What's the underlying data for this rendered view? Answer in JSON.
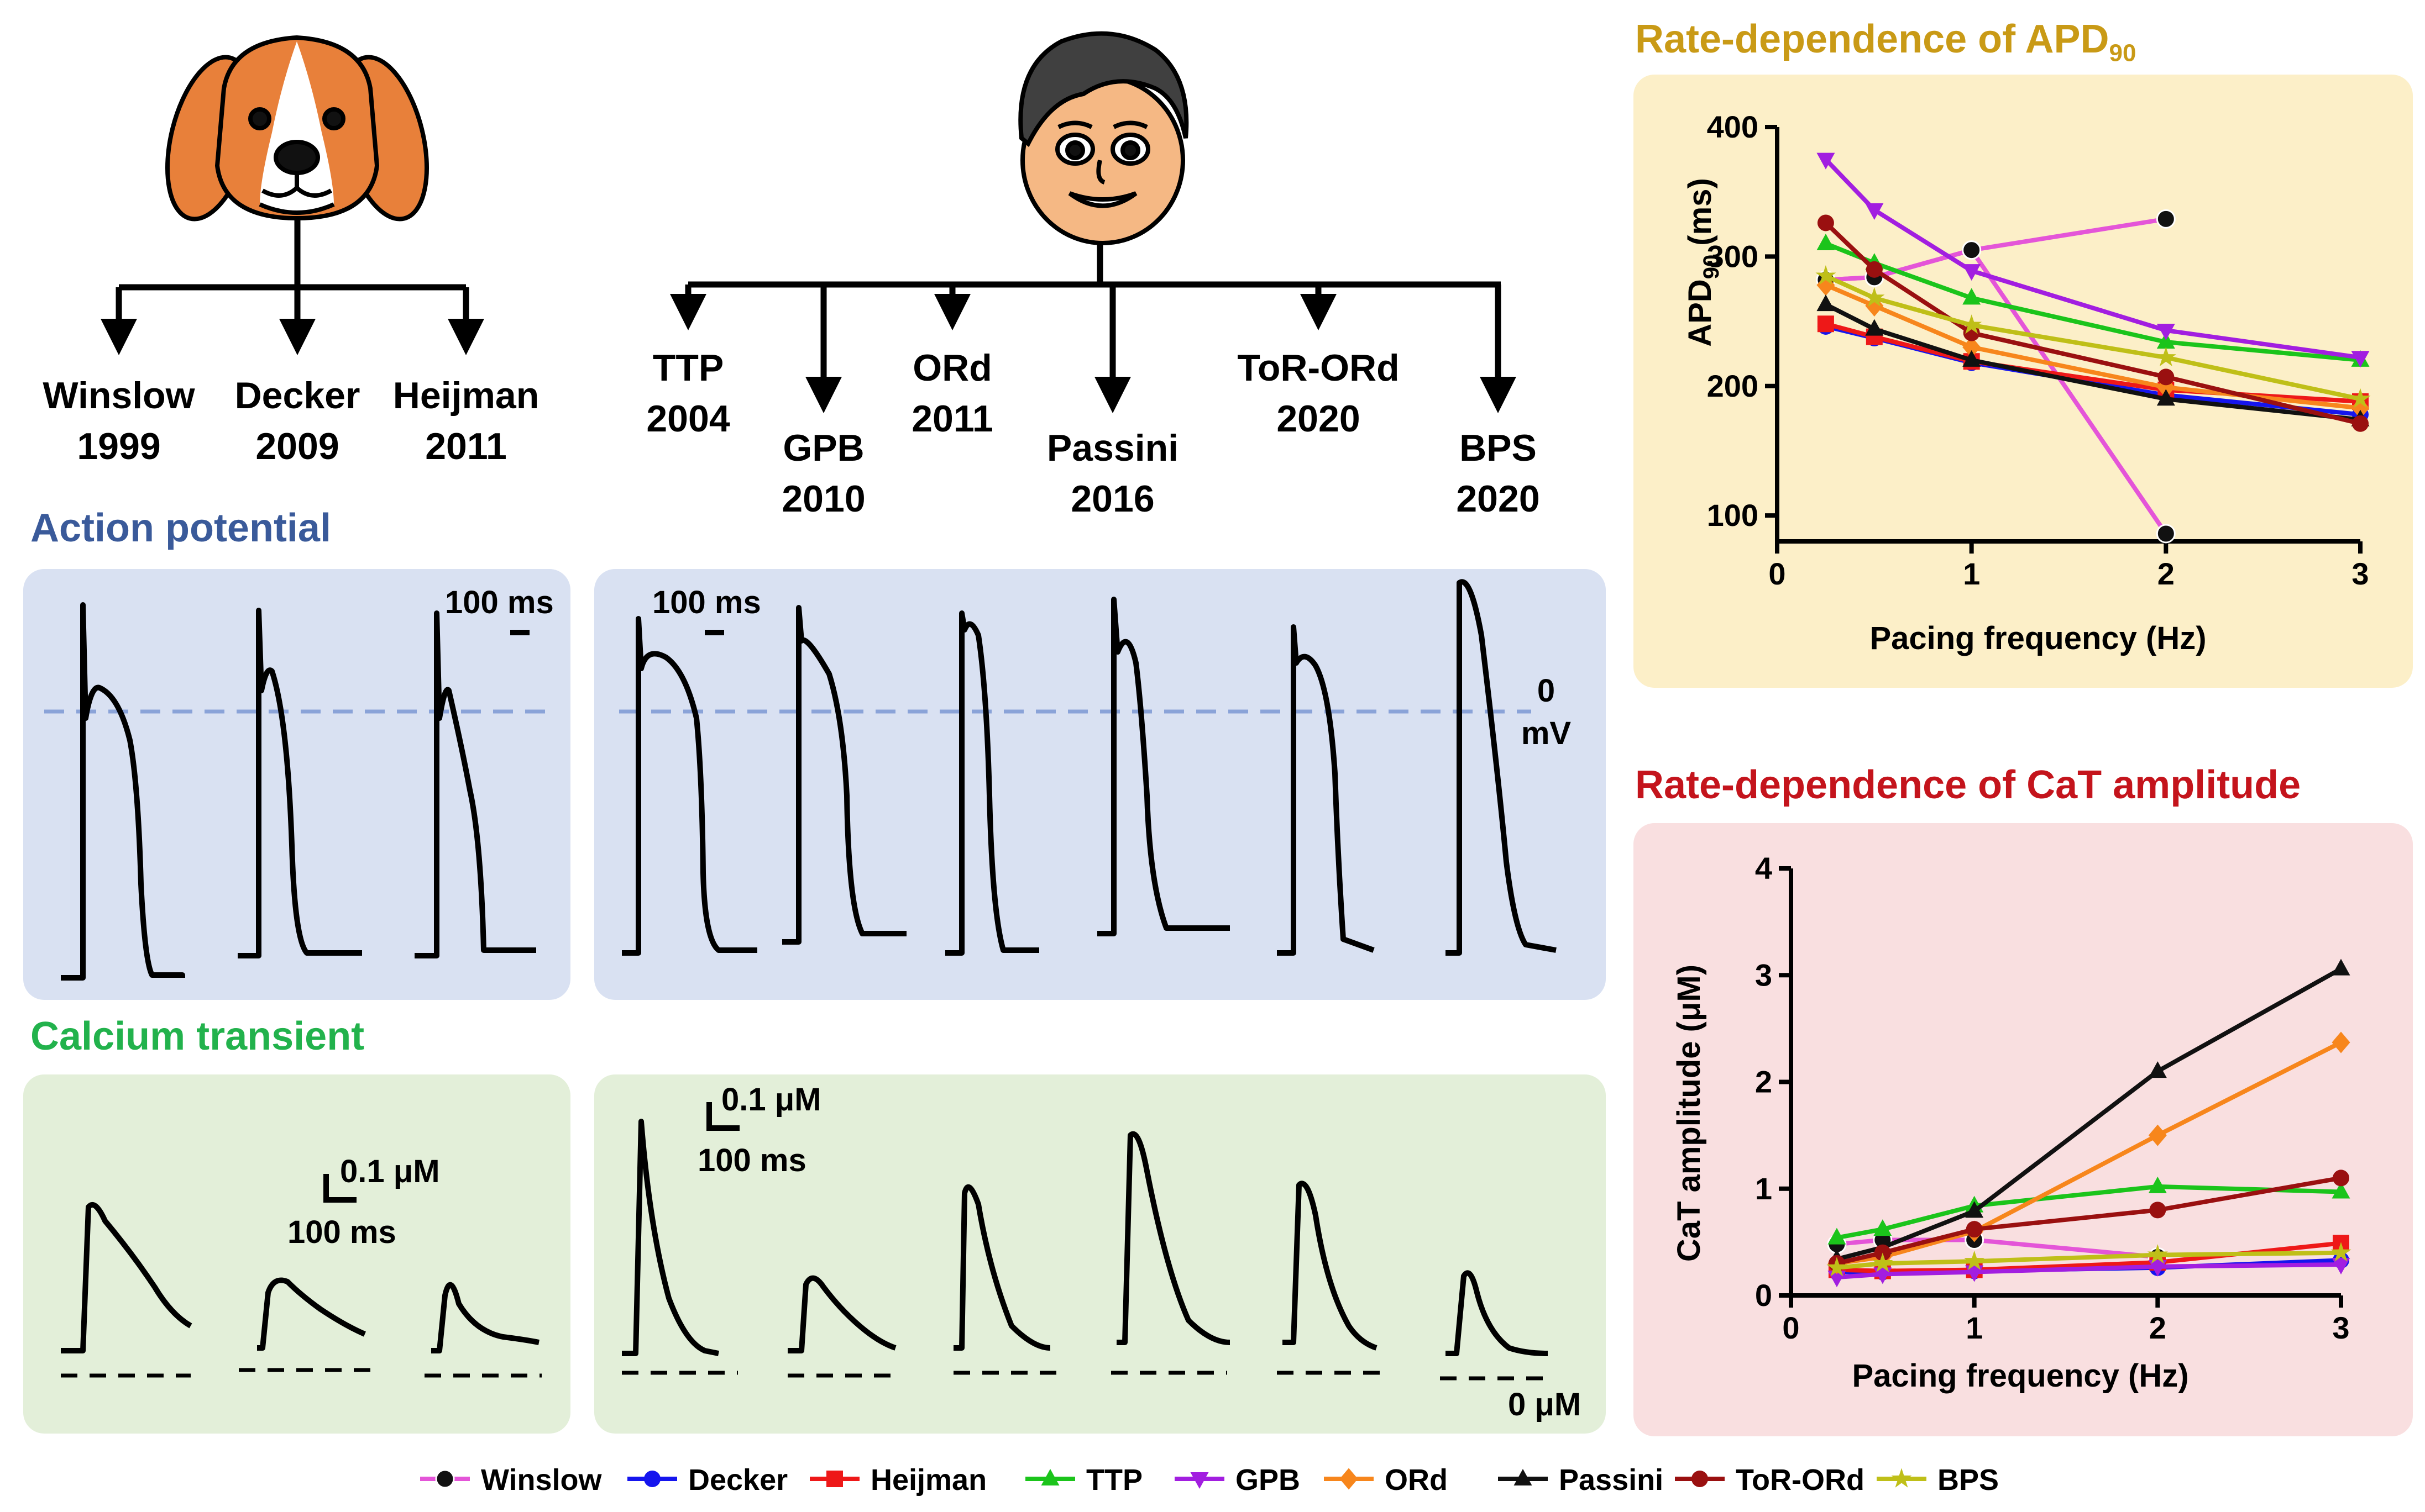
{
  "colors": {
    "Winslow": "#e455d8",
    "Decker": "#1515ee",
    "Heijman": "#ee1818",
    "TTP": "#1bc41b",
    "GPB": "#a21ee0",
    "ORd": "#f7861c",
    "Passini": "#111111",
    "ToR-ORd": "#9a1010",
    "BPS": "#bfbf18",
    "ap_panel": "#d9e1f2",
    "ca_panel": "#e3efd9",
    "apd_panel": "#fcefc8",
    "cat_panel": "#f9dfe0",
    "ap_heading": "#3a5a9a",
    "ca_heading": "#22b24c",
    "apd_heading": "#c99a16",
    "cat_heading": "#c4141c"
  },
  "species": {
    "dog": "dog-face-icon",
    "human": "human-face-icon"
  },
  "dog_models": [
    {
      "name": "Winslow",
      "year": "1999"
    },
    {
      "name": "Decker",
      "year": "2009"
    },
    {
      "name": "Heijman",
      "year": "2011"
    }
  ],
  "human_models": [
    {
      "name": "TTP",
      "year": "2004"
    },
    {
      "name": "GPB",
      "year": "2010"
    },
    {
      "name": "ORd",
      "year": "2011"
    },
    {
      "name": "Passini",
      "year": "2016"
    },
    {
      "name": "ToR-ORd",
      "year": "2020"
    },
    {
      "name": "BPS",
      "year": "2020"
    }
  ],
  "sections": {
    "action_potential": "Action potential",
    "calcium_transient": "Calcium transient"
  },
  "scale_bars": {
    "ap_time_dog": "100 ms",
    "ap_time_human": "100 ms",
    "ap_zero_value": "0",
    "ap_zero_unit": "mV",
    "ca_conc_dog": "0.1 μM",
    "ca_time_dog": "100 ms",
    "ca_conc_human": "0.1 μM",
    "ca_time_human": "100 ms",
    "ca_zero": "0 μM"
  },
  "chart_data": [
    {
      "type": "line",
      "title_prefix": "Rate-dependence of APD",
      "title_sub": "90",
      "xlabel": "Pacing frequency (Hz)",
      "ylabel_prefix": "APD",
      "ylabel_sub": "90",
      "ylabel_suffix": " (ms)",
      "xlim": [
        0,
        3
      ],
      "ylim": [
        80,
        400
      ],
      "xticks": [
        0,
        1,
        2,
        3
      ],
      "yticks": [
        100,
        200,
        300,
        400
      ],
      "series": [
        {
          "name": "Winslow",
          "x": [
            0.25,
            0.5,
            1,
            2
          ],
          "values": [
            282,
            284,
            305,
            329
          ]
        },
        {
          "name": "Winslow",
          "x": [
            0.25,
            0.5,
            1,
            2
          ],
          "values": [
            282,
            284,
            305,
            86
          ]
        },
        {
          "name": "Decker",
          "x": [
            0.25,
            0.5,
            1,
            2,
            3
          ],
          "values": [
            246,
            237,
            218,
            193,
            178
          ]
        },
        {
          "name": "Heijman",
          "x": [
            0.25,
            0.5,
            1,
            2,
            3
          ],
          "values": [
            248,
            238,
            219,
            197,
            188
          ]
        },
        {
          "name": "TTP",
          "x": [
            0.25,
            0.5,
            1,
            2,
            3
          ],
          "values": [
            310,
            295,
            268,
            234,
            220
          ]
        },
        {
          "name": "GPB",
          "x": [
            0.25,
            0.5,
            1,
            2,
            3
          ],
          "values": [
            375,
            336,
            289,
            243,
            222
          ]
        },
        {
          "name": "ORd",
          "x": [
            0.25,
            0.5,
            1,
            2,
            3
          ],
          "values": [
            278,
            262,
            230,
            199,
            183
          ]
        },
        {
          "name": "Passini",
          "x": [
            0.25,
            0.5,
            1,
            2,
            3
          ],
          "values": [
            263,
            244,
            220,
            190,
            174
          ]
        },
        {
          "name": "ToR-ORd",
          "x": [
            0.25,
            0.5,
            1,
            2,
            3
          ],
          "values": [
            326,
            290,
            241,
            207,
            171
          ]
        },
        {
          "name": "BPS",
          "x": [
            0.25,
            0.5,
            1,
            2,
            3
          ],
          "values": [
            285,
            268,
            247,
            222,
            190
          ]
        }
      ]
    },
    {
      "type": "line",
      "title": "Rate-dependence of CaT amplitude",
      "xlabel": "Pacing frequency (Hz)",
      "ylabel": "CaT amplitude (μM)",
      "xlim": [
        0,
        3
      ],
      "ylim": [
        0,
        4
      ],
      "xticks": [
        0,
        1,
        2,
        3
      ],
      "yticks": [
        0,
        1,
        2,
        3,
        4
      ],
      "series": [
        {
          "name": "Winslow",
          "x": [
            0.25,
            0.5,
            1,
            2
          ],
          "values": [
            0.48,
            0.52,
            0.52,
            0.36
          ]
        },
        {
          "name": "Decker",
          "x": [
            0.25,
            0.5,
            1,
            2,
            3
          ],
          "values": [
            0.22,
            0.22,
            0.23,
            0.26,
            0.33
          ]
        },
        {
          "name": "Heijman",
          "x": [
            0.25,
            0.5,
            1,
            2,
            3
          ],
          "values": [
            0.24,
            0.23,
            0.24,
            0.31,
            0.49
          ]
        },
        {
          "name": "TTP",
          "x": [
            0.25,
            0.5,
            1,
            2,
            3
          ],
          "values": [
            0.54,
            0.62,
            0.84,
            1.02,
            0.97
          ]
        },
        {
          "name": "GPB",
          "x": [
            0.25,
            0.5,
            1,
            2,
            3
          ],
          "values": [
            0.17,
            0.2,
            0.22,
            0.27,
            0.29
          ]
        },
        {
          "name": "ORd",
          "x": [
            0.25,
            0.5,
            1,
            2,
            3
          ],
          "values": [
            0.3,
            0.36,
            0.6,
            1.5,
            2.37
          ]
        },
        {
          "name": "Passini",
          "x": [
            0.25,
            0.5,
            1,
            2,
            3
          ],
          "values": [
            0.34,
            0.45,
            0.79,
            2.1,
            3.06
          ]
        },
        {
          "name": "ToR-ORd",
          "x": [
            0.25,
            0.5,
            1,
            2,
            3
          ],
          "values": [
            0.3,
            0.4,
            0.62,
            0.8,
            1.1
          ]
        },
        {
          "name": "BPS",
          "x": [
            0.25,
            0.5,
            1,
            2,
            3
          ],
          "values": [
            0.26,
            0.3,
            0.32,
            0.38,
            0.4
          ]
        }
      ]
    }
  ],
  "legend": [
    "Winslow",
    "Decker",
    "Heijman",
    "TTP",
    "GPB",
    "ORd",
    "Passini",
    "ToR-ORd",
    "BPS"
  ]
}
